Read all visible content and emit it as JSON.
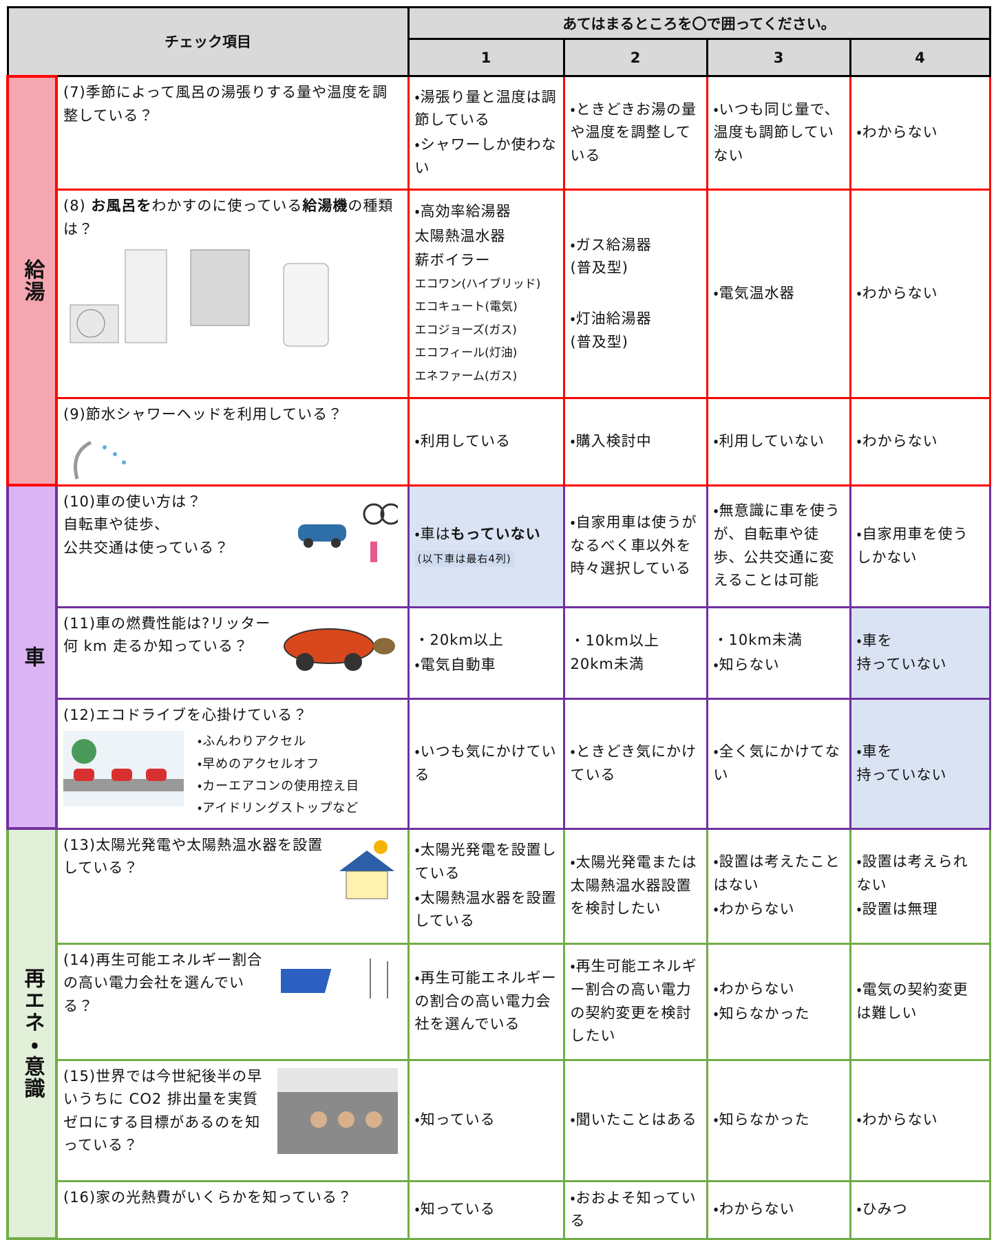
{
  "header": {
    "check_item": "チェック項目",
    "instruction": "あてはまるところを〇で囲ってください。",
    "columns": [
      "1",
      "2",
      "3",
      "4"
    ]
  },
  "groups": [
    {
      "label": "給湯",
      "rows": [
        {
          "question": "(7)季節によって風呂の湯張りする量や温度を調整している？",
          "answers": [
            {
              "items": [
                "・湯張り量と温度は調節している",
                "・シャワーしか使わない"
              ]
            },
            {
              "items": [
                "・ときどきお湯の量や温度を調整している"
              ]
            },
            {
              "items": [
                "・いつも同じ量で、温度も調節していない"
              ]
            },
            {
              "items": [
                "・わからない"
              ]
            }
          ]
        },
        {
          "question": [
            "(8) ",
            {
              "text": "お風呂を",
              "bold": true
            },
            "わかすのに使っている",
            {
              "text": "給湯機",
              "bold": true
            },
            "の種類は？"
          ],
          "answers": [
            {
              "items": [
                "・高効率給湯器",
                "太陽熱温水器",
                "薪ボイラー",
                {
                  "text": "エコワン(ハイブリッド)",
                  "small": true
                },
                {
                  "text": "エコキュート(電気)",
                  "small": true
                },
                {
                  "text": "エコジョーズ(ガス)",
                  "small": true
                },
                {
                  "text": "エコフィール(灯油)",
                  "small": true
                },
                {
                  "text": "エネファーム(ガス)",
                  "small": true
                }
              ]
            },
            {
              "items": [
                "・ガス給湯器\n(普及型)",
                "・灯油給湯器\n(普及型)"
              ]
            },
            {
              "items": [
                "・電気温水器"
              ]
            },
            {
              "items": [
                "・わからない"
              ]
            }
          ]
        },
        {
          "question": "(9)節水シャワーヘッドを利用している？",
          "answers": [
            {
              "items": [
                "・利用している"
              ]
            },
            {
              "items": [
                "・購入検討中"
              ]
            },
            {
              "items": [
                "・利用していない"
              ]
            },
            {
              "items": [
                "・わからない"
              ]
            }
          ]
        }
      ]
    },
    {
      "label": "車",
      "rows": [
        {
          "question": "(10)車の使い方は？\n自転車や徒歩、\n公共交通は使っている？",
          "answers": [
            {
              "highlight": true,
              "items": [
                {
                  "parts": [
                    "・車は",
                    {
                      "text": "もっていない",
                      "bold": true
                    }
                  ]
                },
                {
                  "text": "(以下車は最右4列)",
                  "small": true
                }
              ]
            },
            {
              "items": [
                "・自家用車は使うがなるべく車以外を時々選択している"
              ]
            },
            {
              "items": [
                "・無意識に車を使うが、自転車や徒歩、公共交通に変えることは可能"
              ]
            },
            {
              "items": [
                "・自家用車を使うしかない"
              ]
            }
          ]
        },
        {
          "question": "(11)車の燃費性能は?リッター何 km 走るか知っている？",
          "answers": [
            {
              "items": [
                "・20km以上",
                "・電気自動車"
              ]
            },
            {
              "items": [
                "・10km以上\n20km未満"
              ]
            },
            {
              "items": [
                "・10km未満",
                "・知らない"
              ]
            },
            {
              "highlight": true,
              "items": [
                "・車を\n持っていない"
              ]
            }
          ]
        },
        {
          "question": "(12)エコドライブを心掛けている？",
          "sub": [
            "・ふんわりアクセル",
            "・早めのアクセルオフ",
            "・カーエアコンの使用控え目",
            "・アイドリングストップなど"
          ],
          "answers": [
            {
              "items": [
                "・いつも気にかけている"
              ]
            },
            {
              "items": [
                "・ときどき気にかけている"
              ]
            },
            {
              "items": [
                "・全く気にかけてない"
              ]
            },
            {
              "highlight": true,
              "items": [
                "・車を\n持っていない"
              ]
            }
          ]
        }
      ]
    },
    {
      "label": "再エネ・意識",
      "rows": [
        {
          "question": "(13)太陽光発電や太陽熱温水器を設置している？",
          "answers": [
            {
              "items": [
                "・太陽光発電を設置している",
                "・太陽熱温水器を設置している"
              ]
            },
            {
              "items": [
                "・太陽光発電または太陽熱温水器設置を検討したい"
              ]
            },
            {
              "items": [
                "・設置は考えたことはない",
                "・わからない"
              ]
            },
            {
              "items": [
                "・設置は考えられない",
                "・設置は無理"
              ]
            }
          ]
        },
        {
          "question": "(14)再生可能エネルギー割合の高い電力会社を選んでいる？",
          "answers": [
            {
              "items": [
                "・再生可能エネルギーの割合の高い電力会社を選んでいる"
              ]
            },
            {
              "items": [
                "・再生可能エネルギー割合の高い電力の契約変更を検討したい"
              ]
            },
            {
              "items": [
                "・わからない",
                "・知らなかった"
              ]
            },
            {
              "items": [
                "・電気の契約変更は難しい"
              ]
            }
          ]
        },
        {
          "question": "(15)世界では今世紀後半の早いうちに CO2 排出量を実質ゼロにする目標があるのを知っている？",
          "answers": [
            {
              "items": [
                "・知っている"
              ]
            },
            {
              "items": [
                "・聞いたことはある"
              ]
            },
            {
              "items": [
                "・知らなかった"
              ]
            },
            {
              "items": [
                "・わからない"
              ]
            }
          ]
        },
        {
          "question": "(16)家の光熱費がいくらかを知っている？",
          "answers": [
            {
              "items": [
                "・知っている"
              ]
            },
            {
              "items": [
                "・おおよそ知っている"
              ]
            },
            {
              "items": [
                "・わからない"
              ]
            },
            {
              "items": [
                "・ひみつ"
              ]
            }
          ]
        }
      ]
    }
  ]
}
